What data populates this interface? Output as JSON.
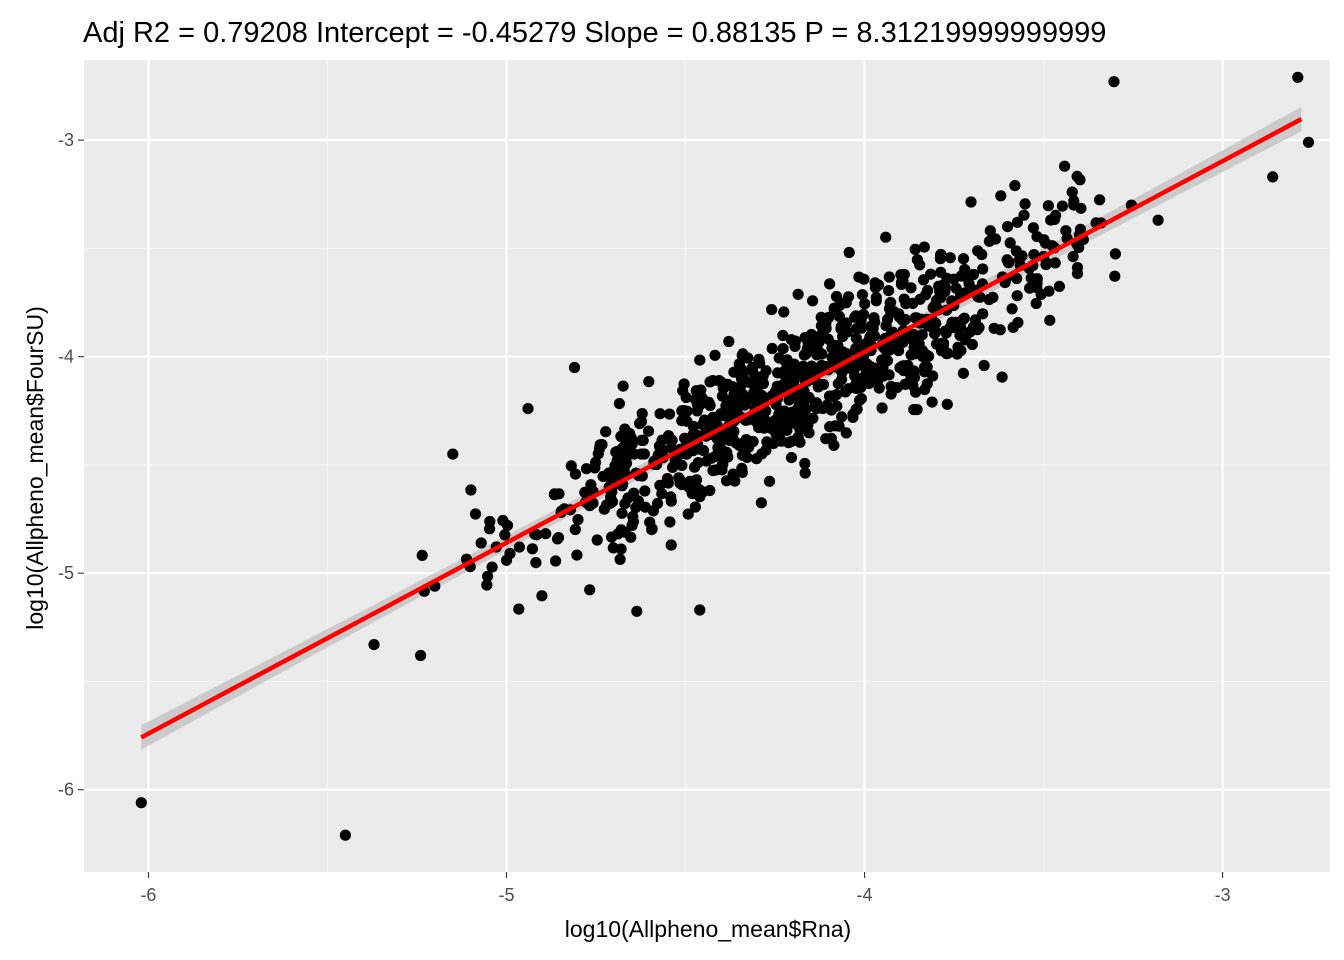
{
  "chart_data": {
    "type": "scatter",
    "title": "Adj R2 =  0.79208 Intercept = -0.45279  Slope = 0.88135  P = 8.31219999999999",
    "xlabel": "log10(Allpheno_mean$Rna)",
    "ylabel": "log10(Allpheno_mean$FourSU)",
    "xlim": [
      -6.18,
      -2.7
    ],
    "ylim": [
      -6.38,
      -2.63
    ],
    "x_ticks": [
      -6,
      -5,
      -4,
      -3
    ],
    "y_ticks": [
      -6,
      -5,
      -4,
      -3
    ],
    "x_tick_labels": [
      "-6",
      "-5",
      "-4",
      "-3"
    ],
    "y_tick_labels": [
      "-6",
      "-5",
      "-4",
      "-3"
    ],
    "grid": true,
    "legend": "none",
    "colors": {
      "panel_background": "#ebebeb",
      "grid_major": "#ffffff",
      "grid_minor": "#f5f5f5",
      "points": "#000000",
      "fit_line": "#ff0000",
      "confidence_band": "#c8c8c8"
    },
    "fit": {
      "intercept": -0.45279,
      "slope": 0.88135,
      "x_range": [
        -6.02,
        -2.78
      ],
      "confidence_halfwidth": 0.05
    },
    "series": [
      {
        "point_count": 900,
        "notable_points": [
          {
            "x": -6.02,
            "y": -6.06
          },
          {
            "x": -5.45,
            "y": -6.21
          },
          {
            "x": -5.37,
            "y": -5.33
          },
          {
            "x": -5.24,
            "y": -5.38
          },
          {
            "x": -5.15,
            "y": -4.45
          },
          {
            "x": -4.94,
            "y": -4.24
          },
          {
            "x": -4.81,
            "y": -4.05
          },
          {
            "x": -4.54,
            "y": -4.87
          },
          {
            "x": -4.46,
            "y": -5.17
          },
          {
            "x": -3.58,
            "y": -3.21
          },
          {
            "x": -3.42,
            "y": -3.24
          },
          {
            "x": -3.18,
            "y": -3.37
          },
          {
            "x": -2.86,
            "y": -3.17
          },
          {
            "x": -2.79,
            "y": -2.71
          },
          {
            "x": -2.76,
            "y": -3.01
          }
        ]
      }
    ]
  }
}
